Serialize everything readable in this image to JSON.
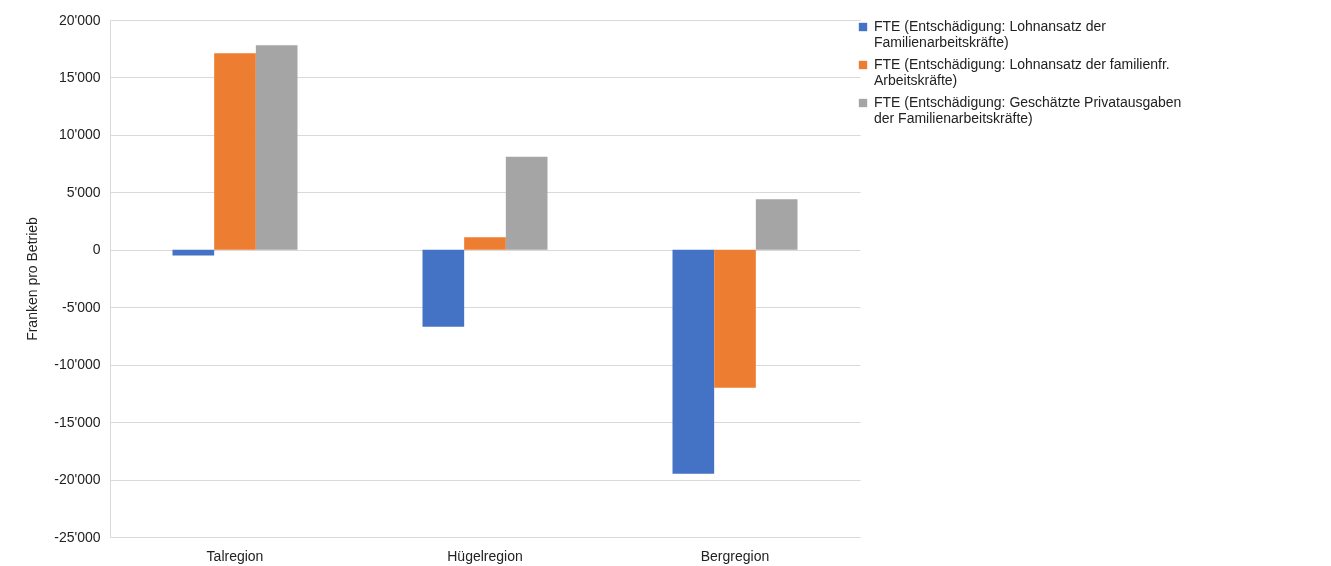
{
  "chart_data": {
    "type": "bar",
    "ylabel": "Franken pro Betrieb",
    "categories": [
      "Talregion",
      "Hügelregion",
      "Bergregion"
    ],
    "series": [
      {
        "name": "FTE (Entschädigung: Lohnansatz der Familienarbeitskräfte)",
        "color": "#4472c4",
        "values": [
          -500,
          -6700,
          -19500
        ]
      },
      {
        "name": "FTE (Entschädigung: Lohnansatz der familienfr. Arbeitskräfte)",
        "color": "#ed7d31",
        "values": [
          17100,
          1100,
          -12000
        ]
      },
      {
        "name": "FTE (Entschädigung: Geschätzte Privatausgaben der Familienarbeitskräfte)",
        "color": "#a5a5a5",
        "values": [
          17800,
          8100,
          4400
        ]
      }
    ],
    "ylim": [
      -25000,
      20000
    ],
    "yticks": [
      {
        "value": -25000,
        "label": "-25'000"
      },
      {
        "value": -20000,
        "label": "-20'000"
      },
      {
        "value": -15000,
        "label": "-15'000"
      },
      {
        "value": -10000,
        "label": "-10'000"
      },
      {
        "value": -5000,
        "label": "-5'000"
      },
      0,
      {
        "value": 5000,
        "label": "5'000"
      },
      {
        "value": 10000,
        "label": "10'000"
      },
      {
        "value": 15000,
        "label": "15'000"
      },
      {
        "value": 20000,
        "label": "20'000"
      }
    ],
    "grid": "y",
    "legend": "right"
  }
}
